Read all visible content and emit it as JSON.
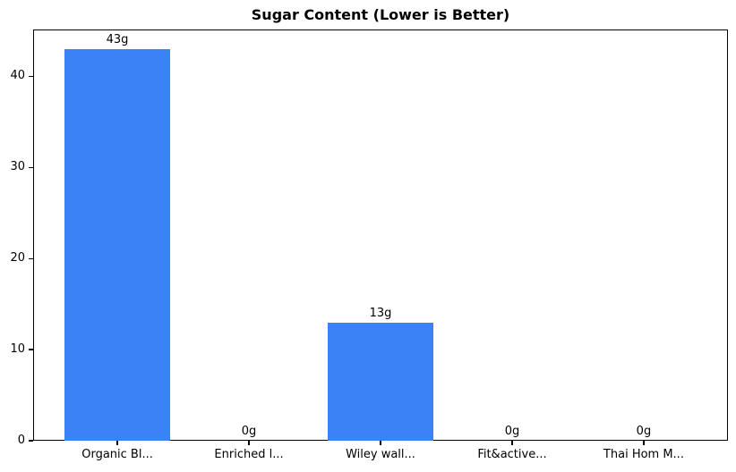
{
  "chart_data": {
    "type": "bar",
    "title": "Sugar Content (Lower is Better)",
    "categories": [
      "Organic Bl...",
      "Enriched l...",
      "Wiley wall...",
      "Fit&active...",
      "Thai Hom M..."
    ],
    "values": [
      43,
      0,
      13,
      0,
      0
    ],
    "value_labels": [
      "43g",
      "0g",
      "13g",
      "0g",
      "0g"
    ],
    "value_unit": "g",
    "xlabel": "",
    "ylabel": "",
    "yticks": [
      0,
      10,
      20,
      30,
      40
    ],
    "ylim": [
      0,
      45.15
    ],
    "grid": false,
    "legend_position": "none",
    "bar_color": "#3b82f6",
    "frame_color": "#000000",
    "background_color": "#ffffff",
    "text_color": "#000000"
  }
}
